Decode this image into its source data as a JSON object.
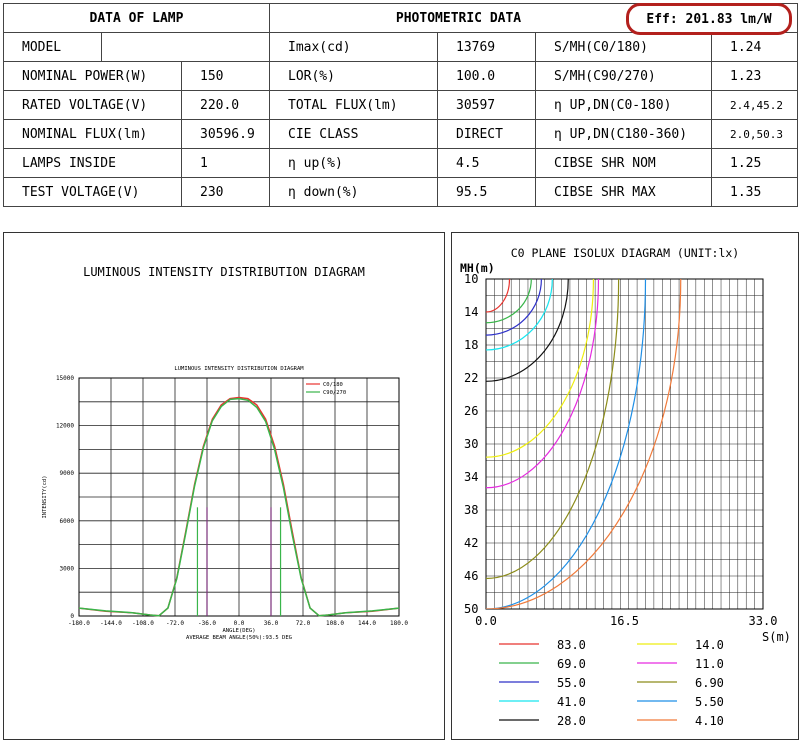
{
  "lamp": {
    "header": "DATA OF LAMP",
    "rows": [
      {
        "label": "MODEL",
        "value": ""
      },
      {
        "label": "NOMINAL POWER(W)",
        "value": "150"
      },
      {
        "label": "RATED VOLTAGE(V)",
        "value": "220.0"
      },
      {
        "label": "NOMINAL FLUX(lm)",
        "value": "30596.9"
      },
      {
        "label": "LAMPS INSIDE",
        "value": "1"
      },
      {
        "label": "TEST VOLTAGE(V)",
        "value": "230"
      }
    ]
  },
  "photometric": {
    "header": "PHOTOMETRIC DATA",
    "efficiency": "Eff: 201.83 lm/W",
    "efficiency_color": "#b3201d",
    "rows": [
      {
        "label": "Imax(cd)",
        "value": "13769",
        "label2": "S/MH(C0/180)",
        "value2": "1.24"
      },
      {
        "label": "LOR(%)",
        "value": "100.0",
        "label2": "S/MH(C90/270)",
        "value2": "1.23"
      },
      {
        "label": "TOTAL FLUX(lm)",
        "value": "30597",
        "label2": "η UP,DN(C0-180)",
        "value2": "2.4,45.2"
      },
      {
        "label": "CIE CLASS",
        "value": "DIRECT",
        "label2": "η UP,DN(C180-360)",
        "value2": "2.0,50.3"
      },
      {
        "label": "η up(%)",
        "value": "4.5",
        "label2": "CIBSE SHR NOM",
        "value2": "1.25"
      },
      {
        "label": "η down(%)",
        "value": "95.5",
        "label2": "CIBSE SHR MAX",
        "value2": "1.35"
      }
    ]
  },
  "chart_data": [
    {
      "type": "line",
      "title": "LUMINOUS INTENSITY DISTRIBUTION DIAGRAM",
      "inner_title": "LUMINOUS INTENSITY DISTRIBUTION DIAGRAM",
      "xlabel": "ANGLE(DEG)",
      "ylabel": "INTENSITY(cd)",
      "footer": "AVERAGE BEAM ANGLE(50%):93.5 DEG",
      "xlim": [
        -180,
        180
      ],
      "ylim": [
        0,
        15000
      ],
      "x_ticks": [
        "-180.0",
        "-144.0",
        "-108.0",
        "-72.0",
        "-36.0",
        "0.0",
        "36.0",
        "72.0",
        "108.0",
        "144.0",
        "180.0"
      ],
      "y_ticks": [
        "0",
        "3000",
        "6000",
        "9000",
        "12000",
        "15000"
      ],
      "grid": true,
      "legend_position": "top-right",
      "x": [
        -180,
        -150,
        -120,
        -100,
        -90,
        -80,
        -70,
        -60,
        -50,
        -40,
        -30,
        -20,
        -10,
        0,
        10,
        20,
        30,
        40,
        50,
        60,
        70,
        80,
        90,
        100,
        120,
        150,
        180
      ],
      "series": [
        {
          "name": "C0/180",
          "color": "#e8332e",
          "values": [
            500,
            300,
            200,
            60,
            20,
            500,
            2400,
            5300,
            8300,
            10700,
            12400,
            13300,
            13700,
            13769,
            13700,
            13300,
            12400,
            10700,
            8300,
            5300,
            2400,
            500,
            20,
            60,
            200,
            300,
            500
          ]
        },
        {
          "name": "C90/270",
          "color": "#39b54a",
          "values": [
            500,
            320,
            210,
            60,
            20,
            500,
            2350,
            5200,
            8200,
            10600,
            12300,
            13200,
            13650,
            13700,
            13600,
            13150,
            12250,
            10500,
            8100,
            5100,
            2350,
            500,
            20,
            60,
            210,
            320,
            500
          ]
        }
      ],
      "markers": [
        {
          "x": -46.75,
          "color": "#39b54a"
        },
        {
          "x": -36.0,
          "color": "#7a2f7a"
        },
        {
          "x": 46.75,
          "color": "#39b54a"
        },
        {
          "x": 36.0,
          "color": "#7a2f7a"
        }
      ]
    },
    {
      "type": "line",
      "title": "C0 PLANE ISOLUX DIAGRAM (UNIT:lx)",
      "xlabel": "S(m)",
      "ylabel": "MH(m)",
      "xlim": [
        0,
        33
      ],
      "ylim": [
        10,
        50
      ],
      "x_ticks": [
        "0.0",
        "16.5",
        "33.0"
      ],
      "y_ticks": [
        "10",
        "14",
        "18",
        "22",
        "26",
        "30",
        "34",
        "38",
        "42",
        "46",
        "50"
      ],
      "grid": true,
      "series": [
        {
          "name": "83.0",
          "color": "#e8332e",
          "w": 2.8,
          "h": 14.0
        },
        {
          "name": "69.0",
          "color": "#39b54a",
          "w": 5.4,
          "h": 15.3
        },
        {
          "name": "55.0",
          "color": "#2e31c8",
          "w": 6.6,
          "h": 16.8
        },
        {
          "name": "41.0",
          "color": "#18e5ef",
          "w": 7.9,
          "h": 18.6
        },
        {
          "name": "28.0",
          "color": "#111111",
          "w": 9.8,
          "h": 22.4
        },
        {
          "name": "14.0",
          "color": "#eeee10",
          "w": 12.8,
          "h": 31.6
        },
        {
          "name": "11.0",
          "color": "#e62be0",
          "w": 13.4,
          "h": 35.3
        },
        {
          "name": "6.90",
          "color": "#8c8c1a",
          "w": 15.8,
          "h": 46.3
        },
        {
          "name": "5.50",
          "color": "#1f8fe6",
          "w": 19.0,
          "h": 50.0
        },
        {
          "name": "4.10",
          "color": "#f07a3a",
          "w": 23.2,
          "h": 50.0
        }
      ]
    }
  ]
}
